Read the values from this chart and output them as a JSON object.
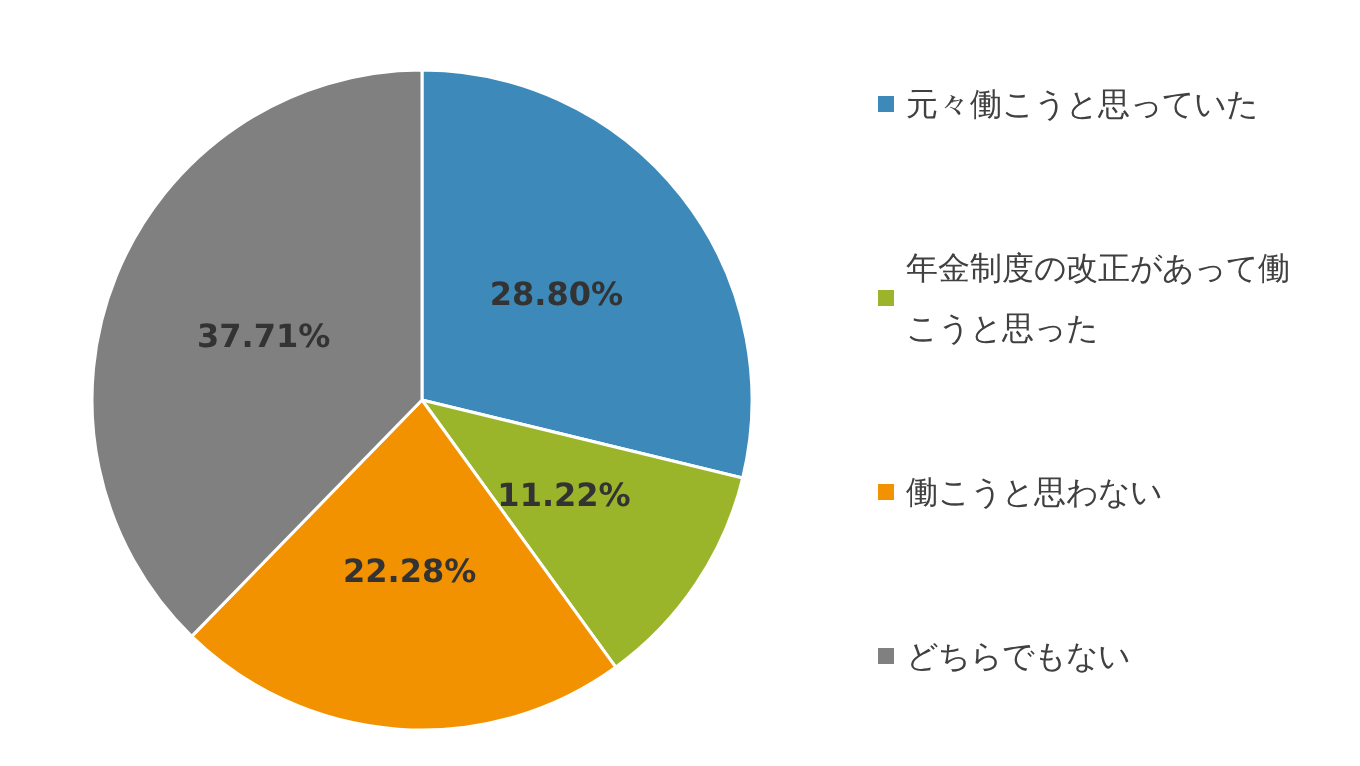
{
  "chart_data": {
    "type": "pie",
    "categories": [
      "元々働こうと思っていた",
      "年金制度の改正があって働こうと思った",
      "働こうと思わない",
      "どちらでもない"
    ],
    "values": [
      28.8,
      11.22,
      22.28,
      37.71
    ],
    "colors": [
      "#3d89b9",
      "#9bb52a",
      "#f39200",
      "#808080"
    ],
    "value_labels": [
      "28.80%",
      "11.22%",
      "22.28%",
      "37.71%"
    ],
    "legend": "right"
  }
}
